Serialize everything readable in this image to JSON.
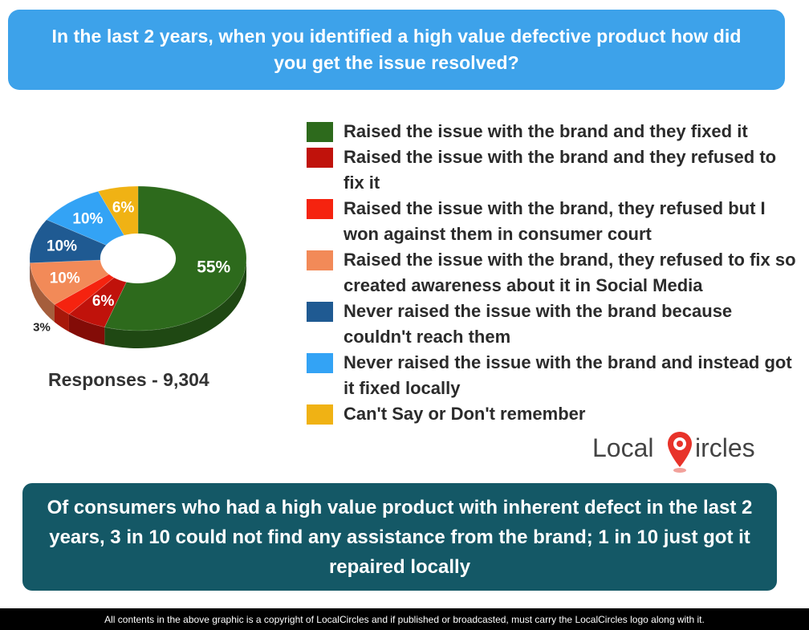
{
  "header": {
    "title": "In the last 2 years, when you identified a high value defective product how did you get the issue resolved?"
  },
  "chart_data": {
    "type": "pie",
    "style": "3d-donut",
    "categories": [
      "Raised the issue with the brand and they fixed it",
      "Raised the issue with the brand and they refused to fix it",
      "Raised the issue with the brand, they refused but I won against them in consumer court",
      "Raised the issue with the brand, they refused to fix so created awareness about it in Social Media",
      "Never raised the issue with the brand because couldn't reach them",
      "Never raised the issue with the brand and instead got it fixed locally",
      "Can't Say or Don't remember"
    ],
    "values": [
      55,
      6,
      3,
      10,
      10,
      10,
      6
    ],
    "labels": [
      "55%",
      "6%",
      "3%",
      "10%",
      "10%",
      "10%",
      "6%"
    ],
    "colors": [
      "#2d6a1c",
      "#c0120b",
      "#f5230f",
      "#f28a58",
      "#1f5a92",
      "#33a3f5",
      "#f0b214"
    ],
    "legend_position": "right",
    "responses_label": "Responses - 9,304"
  },
  "logo": {
    "left_text": "Local",
    "right_text": "ircles",
    "pin_color": "#e8332a"
  },
  "summary": {
    "text": "Of consumers who had a high value product with inherent defect in the last 2 years, 3 in 10 could not find any assistance from the brand; 1 in 10 just got it repaired locally"
  },
  "footer": {
    "text": "All contents in the above graphic is a copyright of LocalCircles and if published or broadcasted, must carry the LocalCircles logo along with it."
  }
}
